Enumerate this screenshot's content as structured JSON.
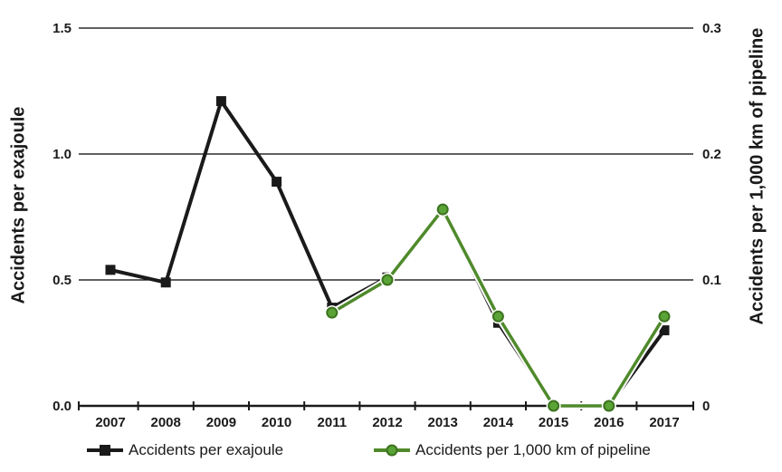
{
  "chart": {
    "left_axis_title": "Accidents per exajoule",
    "right_axis_title": "Accidents per 1,000 km of pipeline",
    "legend": {
      "exajoule_label": "Accidents per exajoule",
      "pipeline_label": "Accidents per 1,000 km of pipeline"
    },
    "colors": {
      "black_series": "#1a1a1a",
      "green_line": "#4f8a2b",
      "green_marker_fill": "#5aa336",
      "green_marker_edge": "#3c721f",
      "grid": "#000000",
      "background": "#ffffff"
    }
  },
  "chart_data": {
    "type": "line",
    "categories": [
      "2007",
      "2008",
      "2009",
      "2010",
      "2011",
      "2012",
      "2013",
      "2014",
      "2015",
      "2016",
      "2017"
    ],
    "series": [
      {
        "name": "Accidents per exajoule",
        "axis": "left",
        "marker": "square",
        "color": "#1a1a1a",
        "values": [
          0.54,
          0.49,
          1.21,
          0.89,
          0.39,
          0.51,
          0.78,
          0.33,
          0.0,
          0.0,
          0.3
        ]
      },
      {
        "name": "Accidents per 1,000 km of pipeline",
        "axis": "right",
        "marker": "circle",
        "color": "#4f8a2b",
        "marker_fill": "#5aa336",
        "marker_edge": "#3c721f",
        "casing": "#ffffff",
        "values": [
          null,
          null,
          null,
          null,
          0.074,
          0.1,
          0.156,
          0.071,
          0.0,
          0.0,
          0.071
        ]
      }
    ],
    "left_axis": {
      "label": "Accidents per exajoule",
      "ticks": [
        "0.0",
        "0.5",
        "1.0",
        "1.5"
      ],
      "range": [
        0,
        1.5
      ]
    },
    "right_axis": {
      "label": "Accidents per 1,000 km of pipeline",
      "ticks": [
        "0",
        "0.1",
        "0.2",
        "0.3"
      ],
      "range": [
        0,
        0.3
      ]
    },
    "grid": true,
    "legend_position": "bottom"
  }
}
